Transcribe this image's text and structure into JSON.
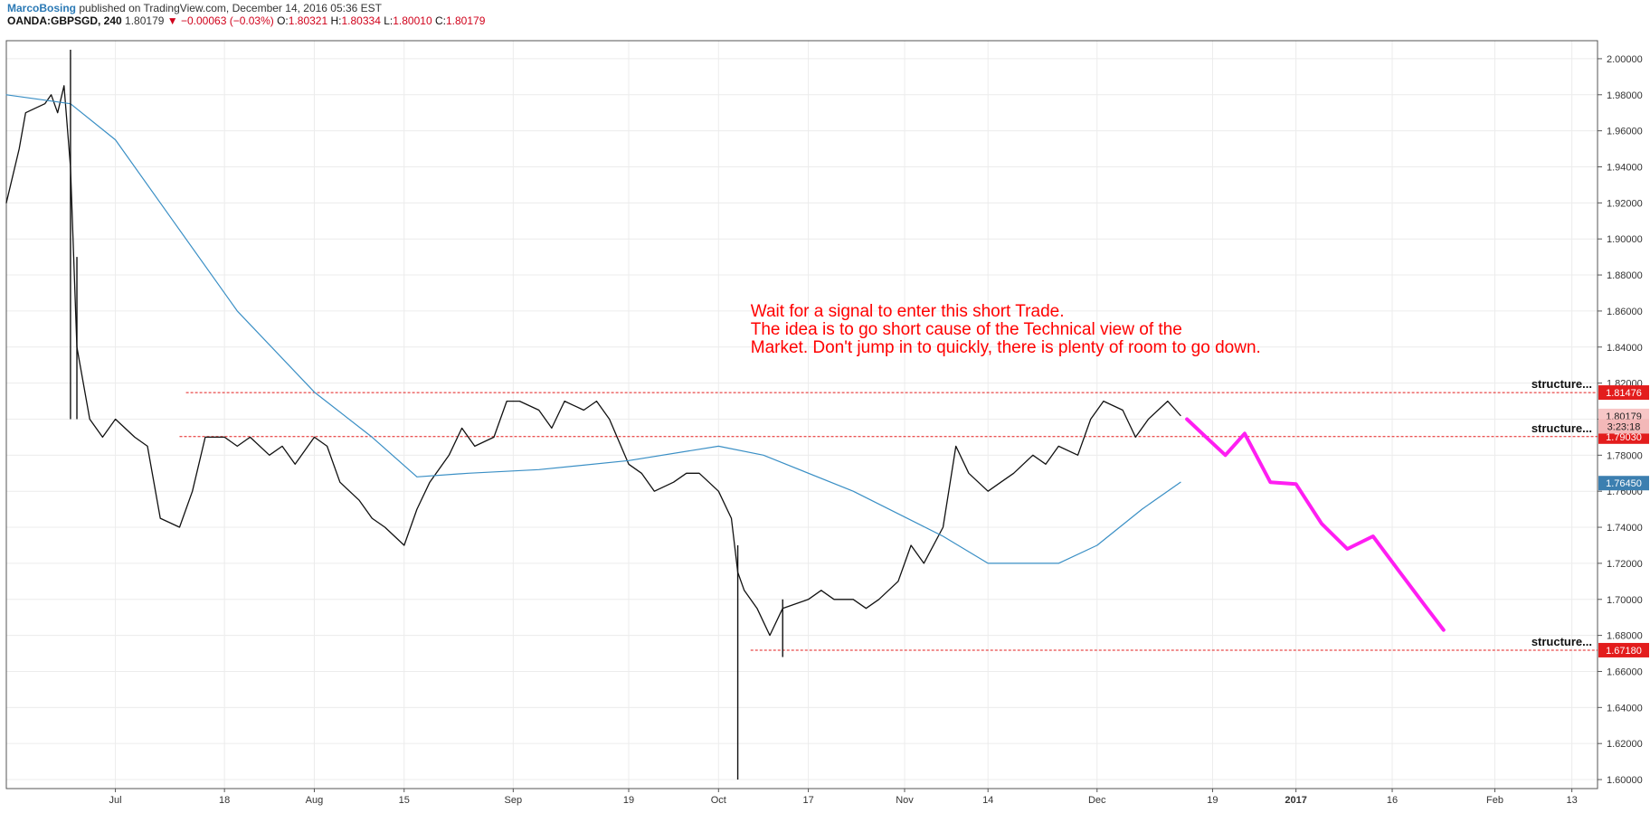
{
  "header": {
    "author": "MarcoBosing",
    "published_text": "published on TradingView.com, December 14, 2016 05:36 EST",
    "symbol": "OANDA:GBPSGD, 240",
    "last": "1.80179",
    "change": "▼ −0.00063 (−0.03%)",
    "o_label": "O:",
    "o": "1.80321",
    "h_label": "H:",
    "h": "1.80334",
    "l_label": "L:",
    "l": "1.80010",
    "c_label": "C:",
    "c": "1.80179"
  },
  "colors": {
    "price": "#111111",
    "ma": "#3a8fc5",
    "level": "#e31d1d",
    "projection": "#ff1ef2",
    "annotation": "#ff0000",
    "ma_badge": "#3c7fb0"
  },
  "chart_data": {
    "type": "line",
    "ylim": [
      1.595,
      2.01
    ],
    "y_ticks": [
      "2.00000",
      "1.98000",
      "1.96000",
      "1.94000",
      "1.92000",
      "1.90000",
      "1.88000",
      "1.86000",
      "1.84000",
      "1.82000",
      "1.80000",
      "1.78000",
      "1.76000",
      "1.74000",
      "1.72000",
      "1.70000",
      "1.68000",
      "1.66000",
      "1.64000",
      "1.62000",
      "1.60000"
    ],
    "y_tick_values": [
      2.0,
      1.98,
      1.96,
      1.94,
      1.92,
      1.9,
      1.88,
      1.86,
      1.84,
      1.82,
      1.8,
      1.78,
      1.76,
      1.74,
      1.72,
      1.7,
      1.68,
      1.66,
      1.64,
      1.62,
      1.6
    ],
    "x_start": "2016-06-14",
    "x_end": "2017-02-17",
    "x_ticks": [
      {
        "label": "Jul",
        "date": "2016-07-01"
      },
      {
        "label": "18",
        "date": "2016-07-18"
      },
      {
        "label": "Aug",
        "date": "2016-08-01"
      },
      {
        "label": "15",
        "date": "2016-08-15"
      },
      {
        "label": "Sep",
        "date": "2016-09-01"
      },
      {
        "label": "19",
        "date": "2016-09-19"
      },
      {
        "label": "Oct",
        "date": "2016-10-03"
      },
      {
        "label": "17",
        "date": "2016-10-17"
      },
      {
        "label": "Nov",
        "date": "2016-11-01"
      },
      {
        "label": "14",
        "date": "2016-11-14"
      },
      {
        "label": "Dec",
        "date": "2016-12-01"
      },
      {
        "label": "19",
        "date": "2016-12-19"
      },
      {
        "label": "2017",
        "date": "2017-01-01"
      },
      {
        "label": "16",
        "date": "2017-01-16"
      },
      {
        "label": "Feb",
        "date": "2017-02-01"
      },
      {
        "label": "13",
        "date": "2017-02-13"
      }
    ],
    "series": [
      {
        "kind": "price",
        "dates": [
          "2016-06-14",
          "2016-06-16",
          "2016-06-17",
          "2016-06-20",
          "2016-06-21",
          "2016-06-22",
          "2016-06-23",
          "2016-06-24",
          "2016-06-25",
          "2016-06-27",
          "2016-06-29",
          "2016-07-01",
          "2016-07-04",
          "2016-07-06",
          "2016-07-08",
          "2016-07-11",
          "2016-07-13",
          "2016-07-15",
          "2016-07-18",
          "2016-07-20",
          "2016-07-22",
          "2016-07-25",
          "2016-07-27",
          "2016-07-29",
          "2016-08-01",
          "2016-08-03",
          "2016-08-05",
          "2016-08-08",
          "2016-08-10",
          "2016-08-12",
          "2016-08-15",
          "2016-08-17",
          "2016-08-19",
          "2016-08-22",
          "2016-08-24",
          "2016-08-26",
          "2016-08-29",
          "2016-08-31",
          "2016-09-02",
          "2016-09-05",
          "2016-09-07",
          "2016-09-09",
          "2016-09-12",
          "2016-09-14",
          "2016-09-16",
          "2016-09-19",
          "2016-09-21",
          "2016-09-23",
          "2016-09-26",
          "2016-09-28",
          "2016-09-30",
          "2016-10-03",
          "2016-10-05",
          "2016-10-06",
          "2016-10-07",
          "2016-10-09",
          "2016-10-11",
          "2016-10-13",
          "2016-10-17",
          "2016-10-19",
          "2016-10-21",
          "2016-10-24",
          "2016-10-26",
          "2016-10-28",
          "2016-10-31",
          "2016-11-02",
          "2016-11-04",
          "2016-11-07",
          "2016-11-09",
          "2016-11-11",
          "2016-11-14",
          "2016-11-16",
          "2016-11-18",
          "2016-11-21",
          "2016-11-23",
          "2016-11-25",
          "2016-11-28",
          "2016-11-30",
          "2016-12-02",
          "2016-12-05",
          "2016-12-07",
          "2016-12-09",
          "2016-12-12",
          "2016-12-14"
        ],
        "values": [
          1.92,
          1.95,
          1.97,
          1.975,
          1.98,
          1.97,
          1.985,
          1.94,
          1.84,
          1.8,
          1.79,
          1.8,
          1.79,
          1.785,
          1.745,
          1.74,
          1.76,
          1.79,
          1.79,
          1.785,
          1.79,
          1.78,
          1.785,
          1.775,
          1.79,
          1.785,
          1.765,
          1.755,
          1.745,
          1.74,
          1.73,
          1.75,
          1.765,
          1.78,
          1.795,
          1.785,
          1.79,
          1.81,
          1.81,
          1.805,
          1.795,
          1.81,
          1.805,
          1.81,
          1.8,
          1.775,
          1.77,
          1.76,
          1.765,
          1.77,
          1.77,
          1.76,
          1.745,
          1.715,
          1.705,
          1.695,
          1.68,
          1.695,
          1.7,
          1.705,
          1.7,
          1.7,
          1.695,
          1.7,
          1.71,
          1.73,
          1.72,
          1.74,
          1.785,
          1.77,
          1.76,
          1.765,
          1.77,
          1.78,
          1.775,
          1.785,
          1.78,
          1.8,
          1.81,
          1.805,
          1.79,
          1.8,
          1.81,
          1.802
        ],
        "spikes": [
          {
            "date": "2016-06-24",
            "high": 2.005,
            "low": 1.8
          },
          {
            "date": "2016-06-25",
            "high": 1.89,
            "low": 1.8
          },
          {
            "date": "2016-10-06",
            "high": 1.73,
            "low": 1.6
          },
          {
            "date": "2016-10-13",
            "high": 1.7,
            "low": 1.668
          }
        ]
      },
      {
        "kind": "moving_average",
        "dates": [
          "2016-06-14",
          "2016-06-24",
          "2016-07-01",
          "2016-07-10",
          "2016-07-20",
          "2016-08-01",
          "2016-08-10",
          "2016-08-17",
          "2016-08-25",
          "2016-09-05",
          "2016-09-19",
          "2016-10-03",
          "2016-10-10",
          "2016-10-24",
          "2016-11-07",
          "2016-11-14",
          "2016-11-25",
          "2016-12-01",
          "2016-12-08",
          "2016-12-14"
        ],
        "values": [
          1.98,
          1.975,
          1.955,
          1.91,
          1.86,
          1.815,
          1.79,
          1.768,
          1.77,
          1.772,
          1.777,
          1.785,
          1.78,
          1.76,
          1.735,
          1.72,
          1.72,
          1.73,
          1.75,
          1.765
        ]
      },
      {
        "kind": "projection",
        "dates": [
          "2016-12-15",
          "2016-12-18",
          "2016-12-21",
          "2016-12-24",
          "2016-12-28",
          "2017-01-01",
          "2017-01-05",
          "2017-01-09",
          "2017-01-13",
          "2017-01-17",
          "2017-01-21",
          "2017-01-24"
        ],
        "values": [
          1.8,
          1.79,
          1.78,
          1.792,
          1.765,
          1.764,
          1.742,
          1.728,
          1.735,
          1.716,
          1.697,
          1.683
        ]
      }
    ],
    "levels": [
      {
        "value": 1.81476,
        "start": "2016-07-12",
        "label": "structure...",
        "badge": "1.81476"
      },
      {
        "value": 1.7903,
        "start": "2016-07-11",
        "label": "structure...",
        "badge": "1.79030"
      },
      {
        "value": 1.6718,
        "start": "2016-10-08",
        "label": "structure...",
        "badge": "1.67180"
      }
    ],
    "badges": {
      "last_price": {
        "value": 1.80179,
        "text": "1.80179"
      },
      "countdown": {
        "value": 1.796,
        "text": "3:23:18"
      },
      "ma_value": {
        "value": 1.7645,
        "text": "1.76450"
      }
    },
    "annotation": {
      "date": "2016-10-08",
      "value": 1.857,
      "lines": [
        "Wait for a signal to enter this short Trade.",
        "The idea is to go short cause of the Technical view of the",
        "Market. Don't jump in to quickly, there is plenty of room to go down."
      ]
    }
  }
}
